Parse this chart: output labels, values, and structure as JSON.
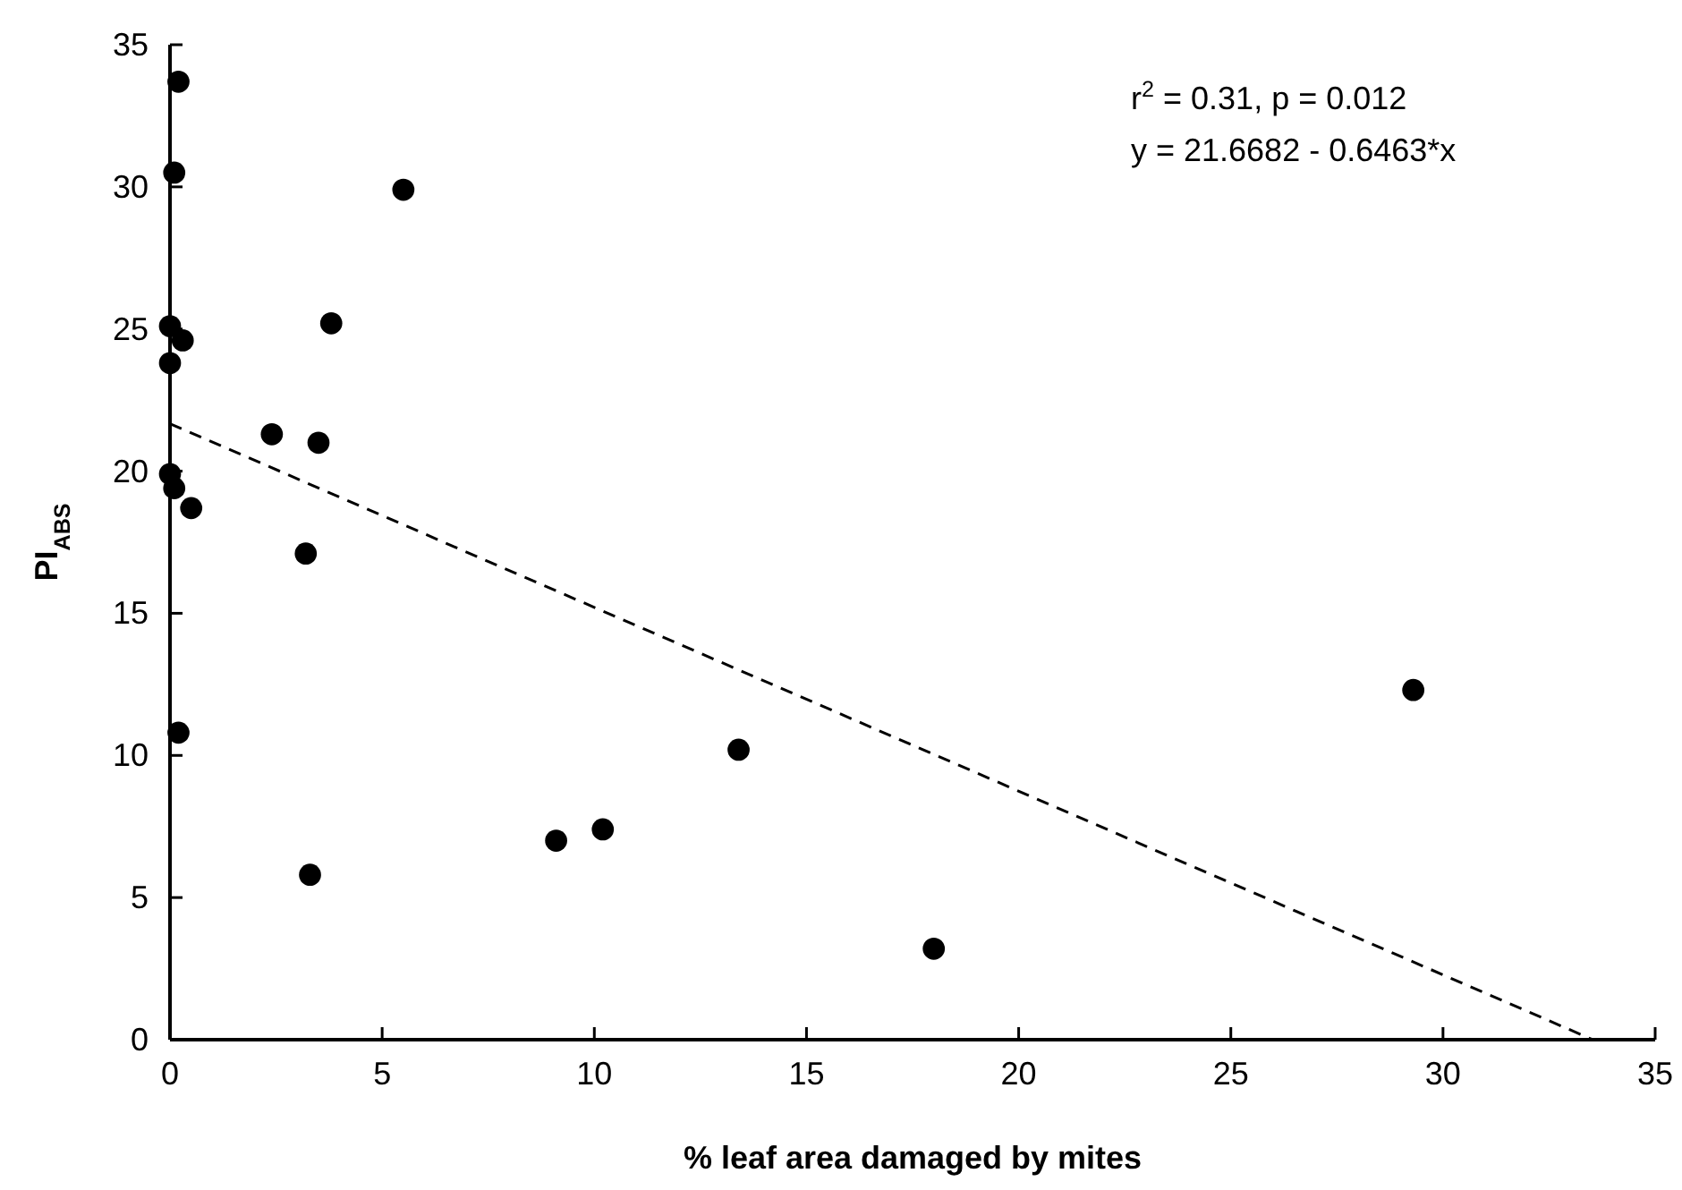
{
  "chart_data": {
    "type": "scatter",
    "xlabel": "% leaf area damaged by mites",
    "ylabel": "PI$_{ABS}$",
    "annotations": [
      "r$^{2}$ = 0.31, p = 0.012",
      "y = 21.6682 - 0.6463*x"
    ],
    "xlim": [
      0,
      35
    ],
    "xticks": [
      0,
      5,
      10,
      15,
      20,
      25,
      30,
      35
    ],
    "ylim": [
      0,
      35
    ],
    "yticks": [
      0,
      5,
      10,
      15,
      20,
      25,
      30,
      35
    ],
    "grid": false,
    "series": [
      {
        "color": "#000000",
        "marker": "circle",
        "x": [
          0.2,
          0.1,
          5.5,
          0,
          0.3,
          3.8,
          0,
          2.4,
          3.5,
          0,
          0.1,
          0.5,
          3.2,
          0.2,
          3.3,
          9.1,
          10.2,
          13.4,
          18.0,
          29.3
        ],
        "values": [
          33.7,
          30.5,
          29.9,
          25.1,
          24.6,
          25.2,
          23.8,
          21.3,
          21.0,
          19.9,
          19.4,
          18.7,
          17.1,
          10.8,
          5.8,
          7.0,
          7.4,
          10.2,
          3.2,
          12.3
        ]
      },
      {
        "type": "line",
        "color": "#000000",
        "line_style": "dashed",
        "marker": "none",
        "x": [
          0,
          33.5
        ],
        "values": [
          21.67,
          0.02
        ]
      }
    ]
  }
}
